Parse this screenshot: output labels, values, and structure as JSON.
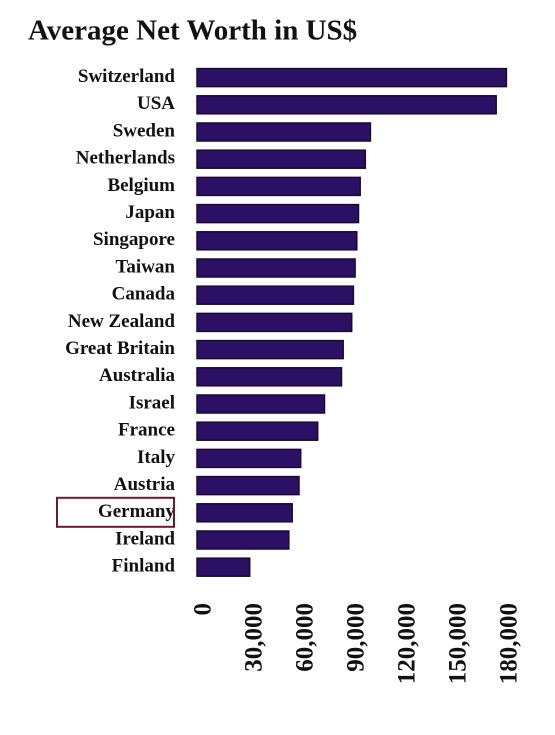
{
  "chart_data": {
    "type": "bar",
    "orientation": "horizontal",
    "title": "Average Net Worth in US$",
    "categories": [
      "Switzerland",
      "USA",
      "Sweden",
      "Netherlands",
      "Belgium",
      "Japan",
      "Singapore",
      "Taiwan",
      "Canada",
      "New Zealand",
      "Great Britain",
      "Australia",
      "Israel",
      "France",
      "Italy",
      "Austria",
      "Germany",
      "Ireland",
      "Finland"
    ],
    "values": [
      182000,
      176000,
      102000,
      99000,
      96000,
      95000,
      94000,
      93000,
      92000,
      91000,
      86000,
      85000,
      75000,
      71000,
      61000,
      60000,
      56000,
      54000,
      31000
    ],
    "color": "#2b1066",
    "highlight_index": 16,
    "highlight_color": "#6e1a2a",
    "xlim": [
      0,
      190000
    ],
    "xticks": [
      0,
      {
        "value": 30000,
        "label": "30,000"
      },
      {
        "value": 60000,
        "label": "60,000"
      },
      {
        "value": 90000,
        "label": "90,000"
      },
      {
        "value": 120000,
        "label": "120,000"
      },
      {
        "value": 150000,
        "label": "150,000"
      },
      {
        "value": 180000,
        "label": "180,000"
      }
    ],
    "grid": false
  }
}
